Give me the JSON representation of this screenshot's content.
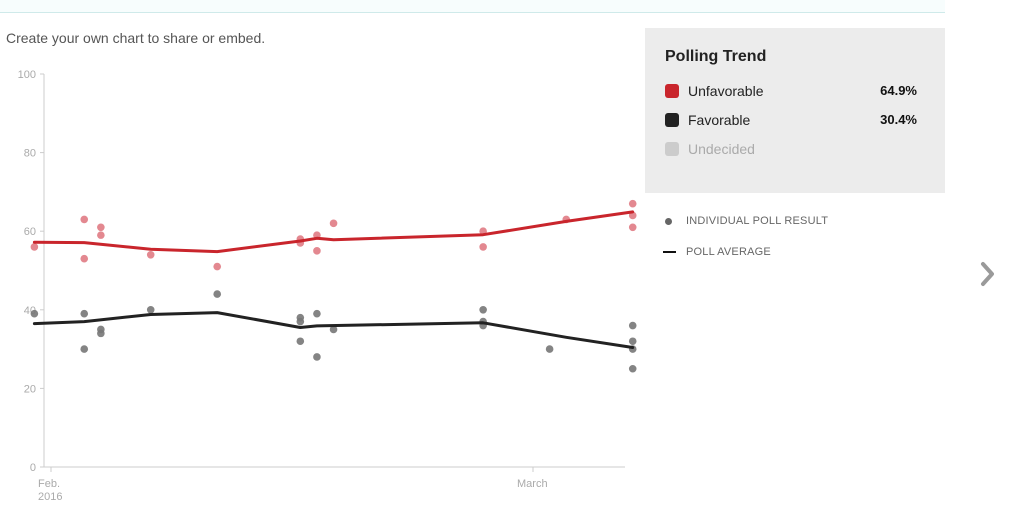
{
  "caption": "Create your own chart to share or embed.",
  "legend": {
    "title": "Polling Trend",
    "items": [
      {
        "label": "Unfavorable",
        "value": "64.9%",
        "color": "#c9252c"
      },
      {
        "label": "Favorable",
        "value": "30.4%",
        "color": "#222222"
      },
      {
        "label": "Undecided",
        "value": "",
        "color": "#cccccc"
      }
    ]
  },
  "key": {
    "individual": "INDIVIDUAL POLL RESULT",
    "average": "POLL AVERAGE"
  },
  "nav": {
    "next_icon": "chevron-right-icon"
  },
  "chart_data": {
    "type": "line",
    "ylim": [
      0,
      100
    ],
    "yticks": [
      "0",
      "20",
      "40",
      "60",
      "80",
      "100"
    ],
    "xlim": [
      "2016-02-01",
      "2016-03-08"
    ],
    "xticks": [
      {
        "date": "2016-02-01",
        "label": "Feb.",
        "sublabel": "2016"
      },
      {
        "date": "2016-03-01",
        "label": "March",
        "sublabel": ""
      }
    ],
    "grid": false,
    "series": [
      {
        "name": "Unfavorable",
        "color": "#c9252c",
        "average": [
          {
            "x": "2016-01-31",
            "y": 57.2
          },
          {
            "x": "2016-02-03",
            "y": 57.1
          },
          {
            "x": "2016-02-07",
            "y": 55.4
          },
          {
            "x": "2016-02-11",
            "y": 54.8
          },
          {
            "x": "2016-02-16",
            "y": 57.5
          },
          {
            "x": "2016-02-17",
            "y": 58.2
          },
          {
            "x": "2016-02-18",
            "y": 57.8
          },
          {
            "x": "2016-02-27",
            "y": 59.1
          },
          {
            "x": "2016-03-03",
            "y": 62.5
          },
          {
            "x": "2016-03-07",
            "y": 64.9
          }
        ],
        "polls": [
          {
            "x": "2016-01-31",
            "y": 56
          },
          {
            "x": "2016-02-03",
            "y": 63
          },
          {
            "x": "2016-02-03",
            "y": 53
          },
          {
            "x": "2016-02-04",
            "y": 61
          },
          {
            "x": "2016-02-04",
            "y": 59
          },
          {
            "x": "2016-02-07",
            "y": 54
          },
          {
            "x": "2016-02-11",
            "y": 51
          },
          {
            "x": "2016-02-16",
            "y": 58
          },
          {
            "x": "2016-02-16",
            "y": 57
          },
          {
            "x": "2016-02-17",
            "y": 59
          },
          {
            "x": "2016-02-17",
            "y": 55
          },
          {
            "x": "2016-02-18",
            "y": 62
          },
          {
            "x": "2016-02-27",
            "y": 60
          },
          {
            "x": "2016-02-27",
            "y": 56
          },
          {
            "x": "2016-03-03",
            "y": 63
          },
          {
            "x": "2016-03-07",
            "y": 67
          },
          {
            "x": "2016-03-07",
            "y": 64
          },
          {
            "x": "2016-03-07",
            "y": 61
          }
        ]
      },
      {
        "name": "Favorable",
        "color": "#222222",
        "average": [
          {
            "x": "2016-01-31",
            "y": 36.5
          },
          {
            "x": "2016-02-03",
            "y": 37.0
          },
          {
            "x": "2016-02-07",
            "y": 38.8
          },
          {
            "x": "2016-02-11",
            "y": 39.3
          },
          {
            "x": "2016-02-16",
            "y": 35.5
          },
          {
            "x": "2016-02-17",
            "y": 35.9
          },
          {
            "x": "2016-02-27",
            "y": 36.7
          },
          {
            "x": "2016-03-03",
            "y": 33.0
          },
          {
            "x": "2016-03-07",
            "y": 30.4
          }
        ],
        "polls": [
          {
            "x": "2016-01-31",
            "y": 39
          },
          {
            "x": "2016-02-03",
            "y": 39
          },
          {
            "x": "2016-02-03",
            "y": 30
          },
          {
            "x": "2016-02-04",
            "y": 35
          },
          {
            "x": "2016-02-04",
            "y": 34
          },
          {
            "x": "2016-02-07",
            "y": 40
          },
          {
            "x": "2016-02-11",
            "y": 44
          },
          {
            "x": "2016-02-16",
            "y": 38
          },
          {
            "x": "2016-02-16",
            "y": 37
          },
          {
            "x": "2016-02-16",
            "y": 32
          },
          {
            "x": "2016-02-17",
            "y": 39
          },
          {
            "x": "2016-02-17",
            "y": 28
          },
          {
            "x": "2016-02-18",
            "y": 35
          },
          {
            "x": "2016-02-27",
            "y": 40
          },
          {
            "x": "2016-02-27",
            "y": 37
          },
          {
            "x": "2016-02-27",
            "y": 36
          },
          {
            "x": "2016-03-02",
            "y": 30
          },
          {
            "x": "2016-03-07",
            "y": 36
          },
          {
            "x": "2016-03-07",
            "y": 32
          },
          {
            "x": "2016-03-07",
            "y": 30
          },
          {
            "x": "2016-03-07",
            "y": 25
          }
        ]
      }
    ]
  }
}
